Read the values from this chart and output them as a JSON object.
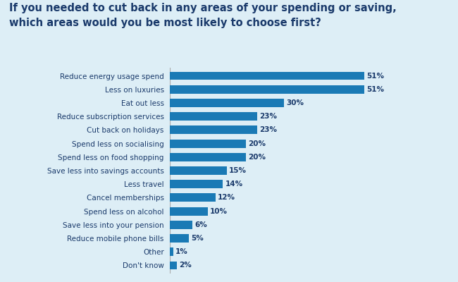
{
  "title": "If you needed to cut back in any areas of your spending or saving,\nwhich areas would you be most likely to choose first?",
  "title_color": "#1a3a6b",
  "title_fontsize": 10.5,
  "title_fontweight": "bold",
  "background_color": "#ddeef6",
  "bar_color": "#1a7ab5",
  "label_color": "#1a3a6b",
  "value_color": "#1a3a6b",
  "categories": [
    "Reduce energy usage spend",
    "Less on luxuries",
    "Eat out less",
    "Reduce subscription services",
    "Cut back on holidays",
    "Spend less on socialising",
    "Spend less on food shopping",
    "Save less into savings accounts",
    "Less travel",
    "Cancel memberships",
    "Spend less on alcohol",
    "Save less into your pension",
    "Reduce mobile phone bills",
    "Other",
    "Don't know"
  ],
  "values": [
    51,
    51,
    30,
    23,
    23,
    20,
    20,
    15,
    14,
    12,
    10,
    6,
    5,
    1,
    2
  ],
  "xlim": [
    0,
    60
  ],
  "bar_height": 0.62,
  "value_fontsize": 7.5,
  "category_fontsize": 7.5,
  "separator_color": "#aaaaaa",
  "separator_linewidth": 0.8
}
